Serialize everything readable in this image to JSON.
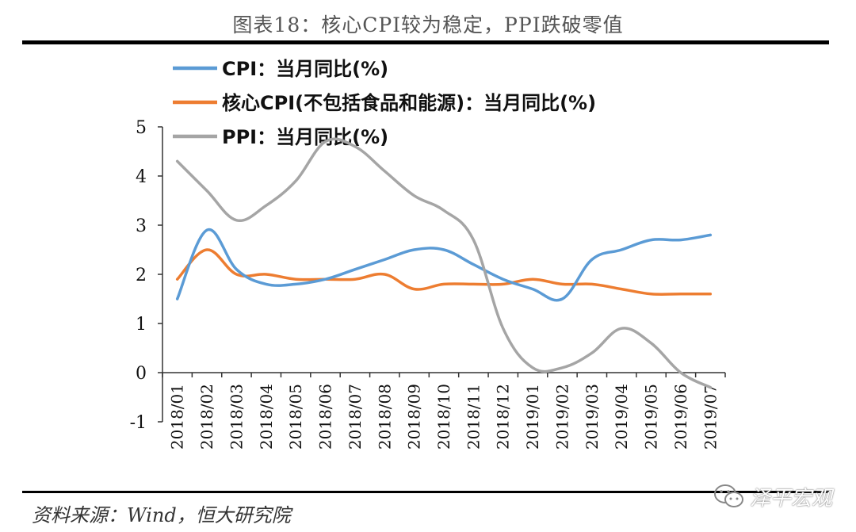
{
  "figure": {
    "title": "图表18：核心CPI较为稳定，PPI跌破零值",
    "source": "资料来源：Wind，恒大研究院",
    "watermark": "泽平宏观",
    "watermark_icon": "wechat-icon"
  },
  "chart_data": {
    "type": "line",
    "title": "图表18：核心CPI较为稳定，PPI跌破零值",
    "xlabel": "",
    "ylabel": "",
    "ylim": [
      -1,
      5
    ],
    "yticks": [
      "-1",
      "0",
      "1",
      "2",
      "3",
      "4",
      "5"
    ],
    "grid": false,
    "legend_position": "top-left",
    "categories": [
      "2018/01",
      "2018/02",
      "2018/03",
      "2018/04",
      "2018/05",
      "2018/06",
      "2018/07",
      "2018/08",
      "2018/09",
      "2018/10",
      "2018/11",
      "2018/12",
      "2019/01",
      "2019/02",
      "2019/03",
      "2019/04",
      "2019/05",
      "2019/06",
      "2019/07"
    ],
    "series": [
      {
        "name": "CPI：当月同比(%)",
        "color": "#5B9BD5",
        "values": [
          1.5,
          2.9,
          2.1,
          1.8,
          1.8,
          1.9,
          2.1,
          2.3,
          2.5,
          2.5,
          2.2,
          1.9,
          1.7,
          1.5,
          2.3,
          2.5,
          2.7,
          2.7,
          2.8
        ]
      },
      {
        "name": "核心CPI(不包括食品和能源)：当月同比(%)",
        "color": "#ED7D31",
        "values": [
          1.9,
          2.5,
          2.0,
          2.0,
          1.9,
          1.9,
          1.9,
          2.0,
          1.7,
          1.8,
          1.8,
          1.8,
          1.9,
          1.8,
          1.8,
          1.7,
          1.6,
          1.6,
          1.6
        ]
      },
      {
        "name": "PPI：当月同比(%)",
        "color": "#A5A5A5",
        "values": [
          4.3,
          3.7,
          3.1,
          3.4,
          3.9,
          4.7,
          4.6,
          4.1,
          3.6,
          3.3,
          2.7,
          0.9,
          0.1,
          0.1,
          0.4,
          0.9,
          0.6,
          0.0,
          -0.3
        ]
      }
    ]
  }
}
